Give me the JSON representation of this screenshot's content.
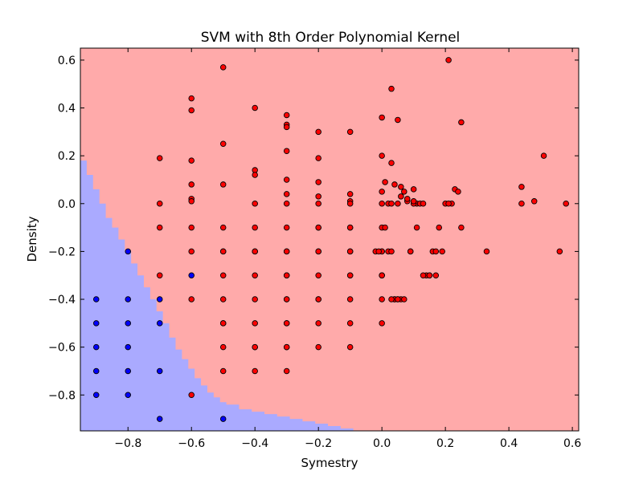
{
  "chart_data": {
    "type": "scatter",
    "title": "SVM with 8th Order Polynomial Kernel",
    "xlabel": "Symestry",
    "ylabel": "Density",
    "xlim": [
      -0.95,
      0.62
    ],
    "ylim": [
      -0.95,
      0.65
    ],
    "xticks": [
      -0.8,
      -0.6,
      -0.4,
      -0.2,
      0.0,
      0.2,
      0.4,
      0.6
    ],
    "yticks": [
      -0.8,
      -0.6,
      -0.4,
      -0.2,
      0.0,
      0.2,
      0.4,
      0.6
    ],
    "xtick_labels": [
      "−0.8",
      "−0.6",
      "−0.4",
      "−0.2",
      "0.0",
      "0.2",
      "0.4",
      "0.6"
    ],
    "ytick_labels": [
      "−0.8",
      "−0.6",
      "−0.4",
      "−0.2",
      "0.0",
      "0.2",
      "0.4",
      "0.6"
    ],
    "grid": false,
    "colors": {
      "region_positive": "#ffaaaa",
      "region_negative": "#aaaaff",
      "point_positive": "#ff0000",
      "point_negative": "#0000ff"
    },
    "decision_boundary": [
      [
        -0.95,
        0.18
      ],
      [
        -0.93,
        0.12
      ],
      [
        -0.91,
        0.06
      ],
      [
        -0.89,
        0.0
      ],
      [
        -0.87,
        -0.06
      ],
      [
        -0.85,
        -0.1
      ],
      [
        -0.83,
        -0.15
      ],
      [
        -0.81,
        -0.2
      ],
      [
        -0.79,
        -0.25
      ],
      [
        -0.77,
        -0.3
      ],
      [
        -0.75,
        -0.35
      ],
      [
        -0.73,
        -0.4
      ],
      [
        -0.71,
        -0.45
      ],
      [
        -0.69,
        -0.5
      ],
      [
        -0.67,
        -0.56
      ],
      [
        -0.65,
        -0.61
      ],
      [
        -0.63,
        -0.65
      ],
      [
        -0.61,
        -0.69
      ],
      [
        -0.59,
        -0.73
      ],
      [
        -0.57,
        -0.76
      ],
      [
        -0.55,
        -0.79
      ],
      [
        -0.53,
        -0.81
      ],
      [
        -0.51,
        -0.83
      ],
      [
        -0.49,
        -0.84
      ],
      [
        -0.45,
        -0.86
      ],
      [
        -0.41,
        -0.87
      ],
      [
        -0.37,
        -0.88
      ],
      [
        -0.33,
        -0.89
      ],
      [
        -0.29,
        -0.9
      ],
      [
        -0.25,
        -0.91
      ],
      [
        -0.21,
        -0.92
      ],
      [
        -0.17,
        -0.93
      ],
      [
        -0.13,
        -0.94
      ],
      [
        -0.09,
        -0.95
      ],
      [
        -0.05,
        -0.95
      ]
    ],
    "series": [
      {
        "class": 1,
        "x": [
          -0.7,
          -0.7,
          -0.7,
          -0.7,
          -0.6,
          -0.6,
          -0.6,
          -0.6,
          -0.6,
          -0.6,
          -0.6,
          -0.6,
          -0.6,
          -0.6,
          -0.5,
          -0.5,
          -0.5,
          -0.5,
          -0.5,
          -0.5,
          -0.5,
          -0.5,
          -0.5,
          -0.5,
          -0.5,
          -0.5,
          -0.4,
          -0.4,
          -0.4,
          -0.4,
          -0.4,
          -0.4,
          -0.4,
          -0.4,
          -0.4,
          -0.4,
          -0.4,
          -0.4,
          -0.4,
          -0.3,
          -0.3,
          -0.3,
          -0.3,
          -0.3,
          -0.3,
          -0.3,
          -0.3,
          -0.3,
          -0.3,
          -0.3,
          -0.3,
          -0.3,
          -0.3,
          -0.3,
          -0.3,
          -0.3,
          -0.3,
          -0.3,
          -0.2,
          -0.2,
          -0.2,
          -0.2,
          -0.2,
          -0.2,
          -0.2,
          -0.2,
          -0.2,
          -0.2,
          -0.2,
          -0.2,
          -0.2,
          -0.2,
          -0.1,
          -0.1,
          -0.1,
          -0.1,
          -0.1,
          -0.1,
          -0.1,
          -0.1,
          -0.1,
          -0.1,
          -0.1,
          -0.1,
          -0.1,
          0.0,
          0.0,
          0.0,
          0.0,
          0.0,
          0.0,
          0.0,
          0.0,
          0.0,
          0.0,
          0.0,
          0.01,
          0.02,
          0.03,
          0.03,
          0.04,
          0.05,
          0.06,
          0.07,
          0.08,
          0.1,
          0.11,
          0.12,
          0.13,
          0.01,
          0.02,
          0.03,
          0.04,
          0.05,
          0.06,
          0.03,
          0.04,
          0.05,
          0.07,
          0.09,
          0.1,
          0.11,
          0.14,
          0.15,
          0.16,
          0.17,
          0.18,
          0.19,
          0.2,
          0.21,
          0.22,
          0.23,
          0.24,
          0.25,
          0.25,
          0.21,
          0.03,
          0.05,
          0.33,
          0.44,
          0.44,
          0.48,
          0.51,
          0.56,
          0.58,
          0.09,
          0.13,
          0.15,
          0.17,
          0.08,
          0.06,
          0.1,
          0.0,
          -0.02,
          -0.01
        ],
        "y": [
          0.19,
          0.0,
          -0.1,
          -0.3,
          0.44,
          0.39,
          0.18,
          0.08,
          0.02,
          0.01,
          -0.1,
          -0.2,
          -0.4,
          -0.8,
          0.57,
          0.25,
          0.08,
          -0.1,
          -0.2,
          -0.3,
          -0.4,
          -0.5,
          -0.6,
          -0.7,
          -0.2,
          -0.5,
          0.4,
          0.14,
          0.12,
          0.0,
          -0.1,
          -0.2,
          -0.3,
          -0.4,
          -0.5,
          -0.6,
          -0.7,
          -0.2,
          -0.6,
          0.37,
          0.33,
          0.32,
          0.22,
          0.1,
          0.04,
          0.0,
          -0.1,
          -0.2,
          -0.3,
          -0.4,
          -0.5,
          -0.6,
          -0.7,
          -0.2,
          -0.3,
          -0.4,
          -0.5,
          -0.6,
          0.3,
          0.19,
          0.09,
          0.03,
          0.0,
          -0.1,
          -0.1,
          -0.2,
          -0.3,
          -0.4,
          -0.5,
          -0.6,
          -0.2,
          -0.4,
          0.3,
          0.04,
          0.01,
          0.0,
          -0.1,
          -0.2,
          -0.3,
          -0.4,
          -0.5,
          -0.6,
          -0.1,
          -0.2,
          -0.3,
          0.36,
          0.2,
          0.05,
          0.0,
          -0.1,
          -0.2,
          -0.3,
          -0.4,
          -0.5,
          -0.2,
          -0.3,
          0.09,
          0.0,
          0.17,
          0.48,
          0.08,
          0.35,
          0.07,
          0.05,
          0.01,
          0.06,
          0.0,
          0.0,
          0.0,
          -0.1,
          -0.2,
          0.0,
          -0.4,
          0.0,
          -0.4,
          -0.2,
          -0.4,
          -0.4,
          -0.4,
          -0.2,
          0.0,
          -0.1,
          -0.3,
          -0.3,
          -0.2,
          -0.3,
          -0.1,
          -0.2,
          0.0,
          0.6,
          0.0,
          0.06,
          0.05,
          0.34,
          -0.1,
          0.0,
          -0.4,
          -0.4,
          -0.2,
          0.07,
          0.0,
          0.01,
          0.2,
          -0.2,
          0.0,
          -0.2,
          -0.3,
          -0.3,
          -0.2,
          0.02,
          0.03,
          0.01,
          -0.3,
          -0.2,
          -0.2
        ]
      },
      {
        "class": -1,
        "x": [
          -0.9,
          -0.9,
          -0.9,
          -0.9,
          -0.9,
          -0.8,
          -0.8,
          -0.8,
          -0.8,
          -0.8,
          -0.8,
          -0.7,
          -0.7,
          -0.7,
          -0.6,
          -0.7,
          -0.5
        ],
        "y": [
          -0.4,
          -0.5,
          -0.6,
          -0.7,
          -0.8,
          -0.2,
          -0.4,
          -0.5,
          -0.6,
          -0.7,
          -0.8,
          -0.4,
          -0.5,
          -0.7,
          -0.3,
          -0.9,
          -0.9
        ]
      }
    ]
  }
}
